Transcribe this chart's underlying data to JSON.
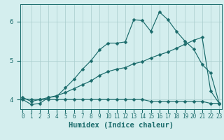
{
  "xlabel": "Humidex (Indice chaleur)",
  "bg_color": "#d4eeee",
  "line_color": "#1a6b6b",
  "grid_color": "#a8cccc",
  "x_values": [
    0,
    1,
    2,
    3,
    4,
    5,
    6,
    7,
    8,
    9,
    10,
    11,
    12,
    13,
    14,
    15,
    16,
    17,
    18,
    19,
    20,
    21,
    22,
    23
  ],
  "line1": [
    4.0,
    3.87,
    3.9,
    4.05,
    4.08,
    4.3,
    4.52,
    4.78,
    5.0,
    5.28,
    5.45,
    5.45,
    5.48,
    6.05,
    6.03,
    5.75,
    6.25,
    6.05,
    5.75,
    5.5,
    5.3,
    4.9,
    4.68,
    3.9
  ],
  "line2": [
    4.05,
    3.95,
    4.0,
    4.05,
    4.1,
    4.18,
    4.28,
    4.38,
    4.48,
    4.62,
    4.72,
    4.78,
    4.82,
    4.92,
    4.97,
    5.07,
    5.15,
    5.22,
    5.32,
    5.42,
    5.52,
    5.6,
    4.22,
    3.9
  ],
  "line3": [
    4.02,
    4.0,
    4.0,
    4.0,
    4.0,
    4.0,
    4.0,
    4.0,
    4.0,
    4.0,
    4.0,
    4.0,
    4.0,
    4.0,
    4.0,
    3.95,
    3.95,
    3.95,
    3.95,
    3.95,
    3.95,
    3.95,
    3.9,
    3.9
  ],
  "ylim": [
    3.75,
    6.45
  ],
  "yticks": [
    4,
    5,
    6
  ],
  "xlim": [
    -0.3,
    23.3
  ],
  "xtick_fontsize": 5.5,
  "ytick_fontsize": 6.5,
  "xlabel_fontsize": 7.5,
  "marker_size": 2.5,
  "linewidth": 0.85
}
